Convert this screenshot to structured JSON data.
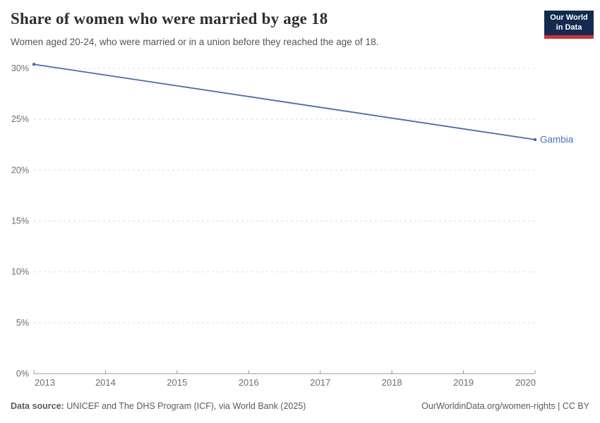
{
  "header": {
    "title": "Share of women who were married by age 18",
    "subtitle": "Women aged 20-24, who were married or in a union before they reached the age of 18."
  },
  "logo": {
    "line1": "Our World",
    "line2": "in Data"
  },
  "chart_data": {
    "type": "line",
    "title": "Share of women who were married by age 18",
    "subtitle": "Women aged 20-24, who were married or in a union before they reached the age of 18.",
    "series": [
      {
        "name": "Gambia",
        "x": [
          2013,
          2020
        ],
        "values": [
          30.4,
          23.0
        ]
      }
    ],
    "entity_label": "Gambia",
    "x_ticks": [
      2013,
      2014,
      2015,
      2016,
      2017,
      2018,
      2019,
      2020
    ],
    "y_ticks": [
      0,
      5,
      10,
      15,
      20,
      25,
      30
    ],
    "y_tick_suffix": "%",
    "xlim": [
      2013,
      2020
    ],
    "ylim": [
      0,
      30
    ],
    "grid": "horizontal dashed gridlines, solid baseline at 0%",
    "legend": "entity label at right end of line",
    "xlabel": "",
    "ylabel": ""
  },
  "footer": {
    "source_label": "Data source:",
    "source_text": " UNICEF and The DHS Program (ICF), via World Bank (2025)",
    "right_text": "OurWorldinData.org/women-rights | CC BY"
  },
  "colors": {
    "line": "#4c6ba9",
    "entity_label": "#4d72b8",
    "grid": "#dcdcdc",
    "axis": "#999999",
    "axis_text": "#6e6e6e",
    "title_text": "#2f2f2f",
    "subtitle_text": "#555555",
    "footer_text": "#5b5b5b",
    "logo_background": "#142a4f",
    "logo_stripe": "#c9353a"
  }
}
